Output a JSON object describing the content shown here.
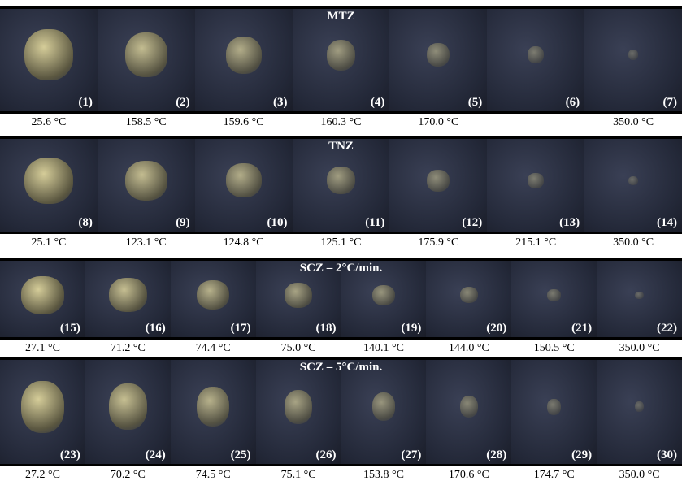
{
  "panels": [
    {
      "title": "MTZ",
      "frames": [
        {
          "label": "(1)",
          "temp": "25.6 °C"
        },
        {
          "label": "(2)",
          "temp": "158.5 °C"
        },
        {
          "label": "(3)",
          "temp": "159.6 °C"
        },
        {
          "label": "(4)",
          "temp": "160.3 °C"
        },
        {
          "label": "(5)",
          "temp": "170.0 °C"
        },
        {
          "label": "(6)"
        },
        {
          "label": "(7)",
          "temp": "350.0 °C"
        }
      ]
    },
    {
      "title": "TNZ",
      "frames": [
        {
          "label": "(8)",
          "temp": "25.1 °C"
        },
        {
          "label": "(9)",
          "temp": "123.1 °C"
        },
        {
          "label": "(10)",
          "temp": "124.8 °C"
        },
        {
          "label": "(11)",
          "temp": "125.1 °C"
        },
        {
          "label": "(12)",
          "temp": "175.9 °C"
        },
        {
          "label": "(13)",
          "temp": "215.1 °C"
        },
        {
          "label": "(14)",
          "temp": "350.0 °C"
        }
      ]
    },
    {
      "title": "SCZ – 2°C/min.",
      "frames": [
        {
          "label": "(15)",
          "temp": "27.1 °C"
        },
        {
          "label": "(16)",
          "temp": "71.2 °C"
        },
        {
          "label": "(17)",
          "temp": "74.4 °C"
        },
        {
          "label": "(18)",
          "temp": "75.0 °C"
        },
        {
          "label": "(19)",
          "temp": "140.1 °C"
        },
        {
          "label": "(20)",
          "temp": "144.0 °C"
        },
        {
          "label": "(21)",
          "temp": "150.5 °C"
        },
        {
          "label": "(22)",
          "temp": "350.0 °C"
        }
      ]
    },
    {
      "title": "SCZ – 5°C/min.",
      "frames": [
        {
          "label": "(23)",
          "temp": "27.2 °C"
        },
        {
          "label": "(24)",
          "temp": "70.2 °C"
        },
        {
          "label": "(25)",
          "temp": "74.5 °C"
        },
        {
          "label": "(26)",
          "temp": "75.1 °C"
        },
        {
          "label": "(27)",
          "temp": "153.8 °C"
        },
        {
          "label": "(28)",
          "temp": "170.6 °C"
        },
        {
          "label": "(29)",
          "temp": "174.7 °C"
        },
        {
          "label": "(30)",
          "temp": "350.0 °C"
        }
      ]
    }
  ]
}
